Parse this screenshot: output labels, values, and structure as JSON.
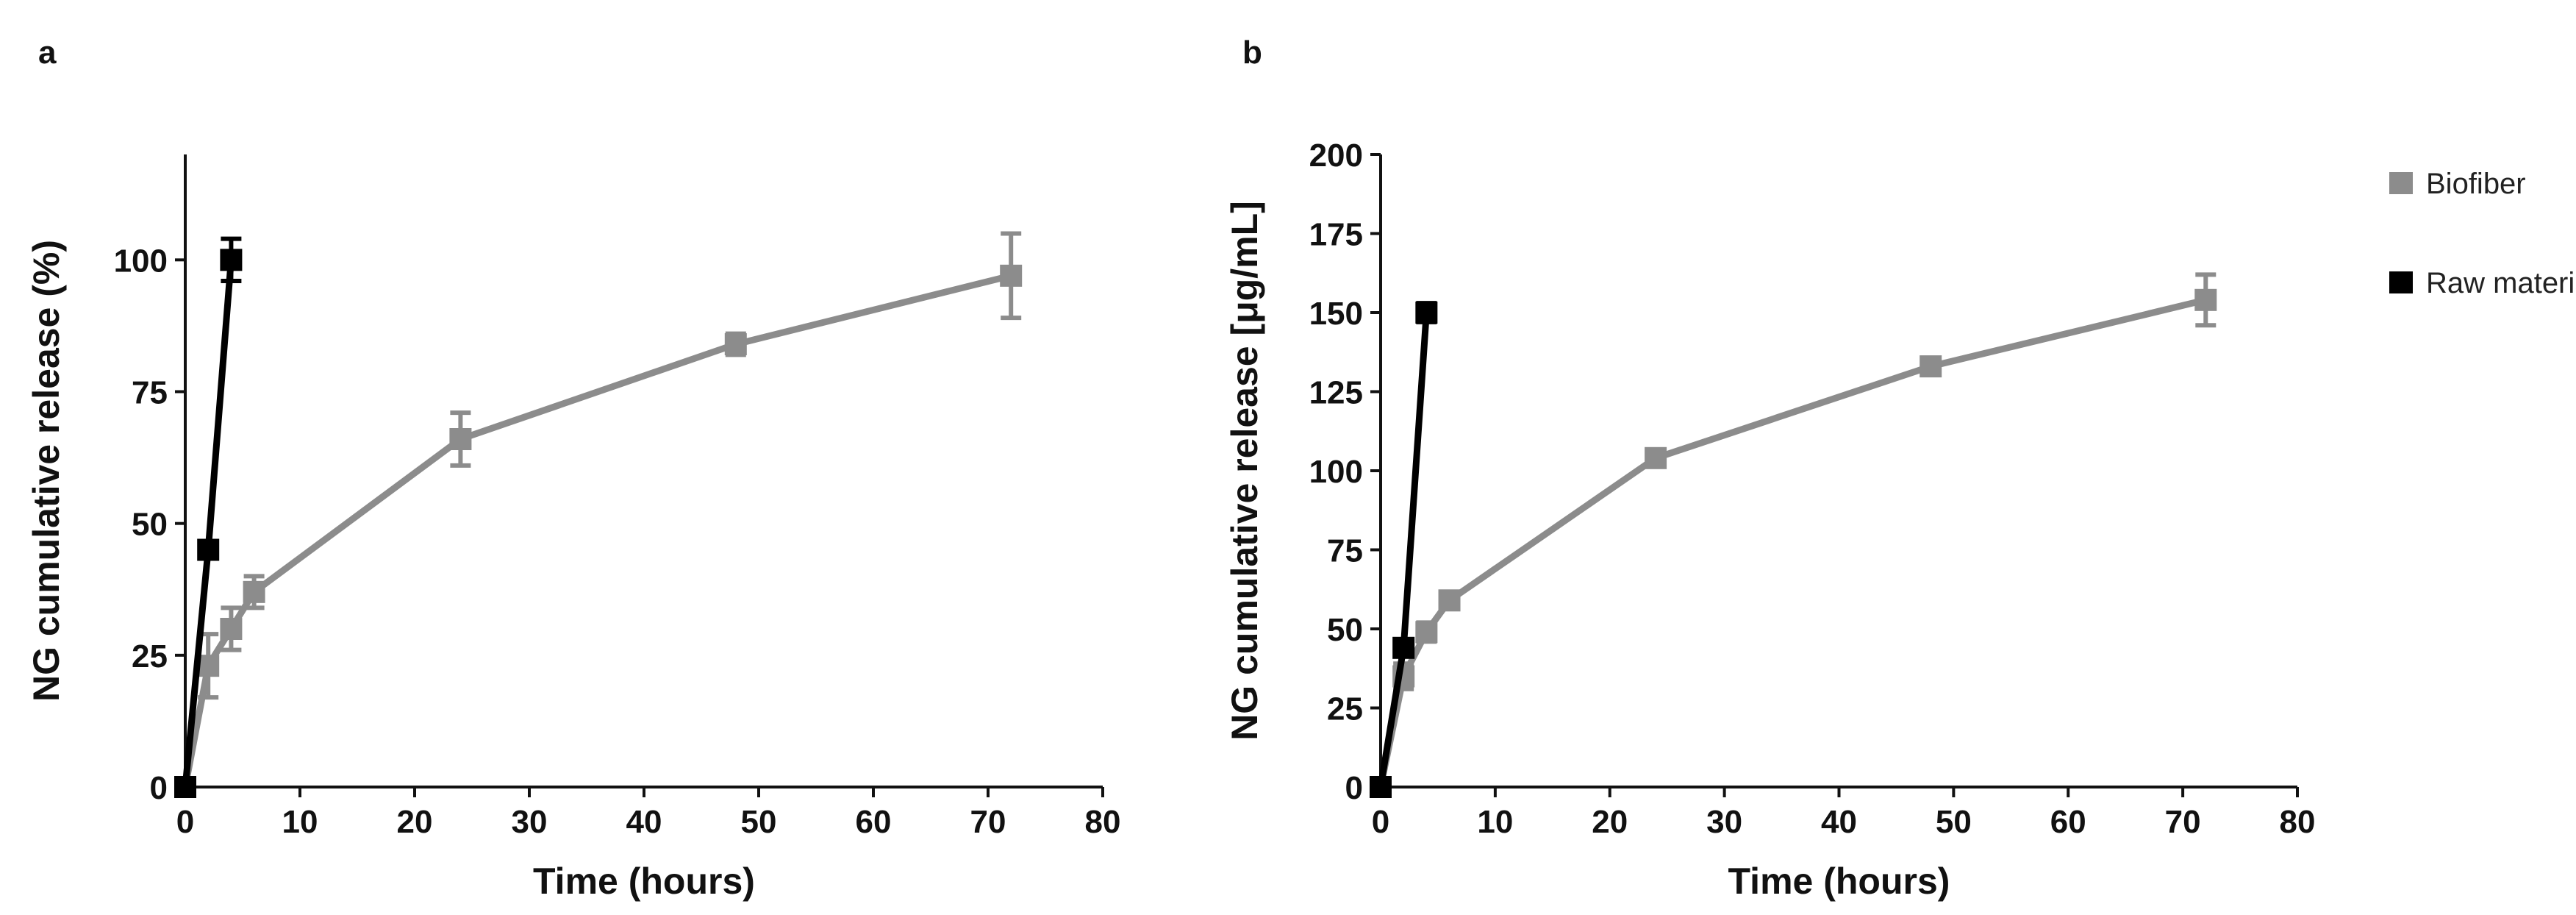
{
  "figure": {
    "panel_labels": [
      "a",
      "b"
    ]
  },
  "legend": {
    "entries": [
      {
        "name": "Biofiber",
        "color": "#8c8c8c"
      },
      {
        "name": "Raw material",
        "color": "#000000"
      }
    ]
  },
  "colors": {
    "biofiber": "#8c8c8c",
    "raw_material": "#000000",
    "axis": "#111111"
  },
  "chart_data": [
    {
      "panel": "a",
      "type": "line",
      "title": "",
      "xlabel": "Time (hours)",
      "ylabel": "NG cumulative release (%)",
      "xlim": [
        0,
        80
      ],
      "ylim": [
        0,
        120
      ],
      "xticks": [
        0,
        10,
        20,
        30,
        40,
        50,
        60,
        70,
        80
      ],
      "yticks": [
        0,
        25,
        50,
        75,
        100
      ],
      "grid": false,
      "series": [
        {
          "name": "Biofiber",
          "x": [
            0,
            2,
            4,
            6,
            24,
            48,
            72
          ],
          "values": [
            0,
            23,
            30,
            37,
            66,
            84,
            97
          ],
          "errors": [
            0,
            6,
            4,
            3,
            5,
            2,
            8
          ]
        },
        {
          "name": "Raw material",
          "x": [
            0,
            2,
            4
          ],
          "values": [
            0,
            45,
            100
          ],
          "errors": [
            0,
            1,
            4
          ]
        }
      ]
    },
    {
      "panel": "b",
      "type": "line",
      "title": "",
      "xlabel": "Time (hours)",
      "ylabel": "NG cumulative release [μg/mL]",
      "xlim": [
        0,
        80
      ],
      "ylim": [
        0,
        200
      ],
      "xticks": [
        0,
        10,
        20,
        30,
        40,
        50,
        60,
        70,
        80
      ],
      "yticks": [
        0,
        25,
        50,
        75,
        100,
        125,
        150,
        175,
        200
      ],
      "grid": false,
      "series": [
        {
          "name": "Biofiber",
          "x": [
            0,
            2,
            4,
            6,
            24,
            48,
            72
          ],
          "values": [
            0,
            35,
            49,
            59,
            104,
            133,
            154
          ],
          "errors": [
            0,
            4,
            3,
            2,
            2,
            2,
            8
          ]
        },
        {
          "name": "Raw material",
          "x": [
            0,
            2,
            4
          ],
          "values": [
            0,
            44,
            150
          ],
          "errors": [
            0,
            2,
            3
          ]
        }
      ]
    }
  ]
}
